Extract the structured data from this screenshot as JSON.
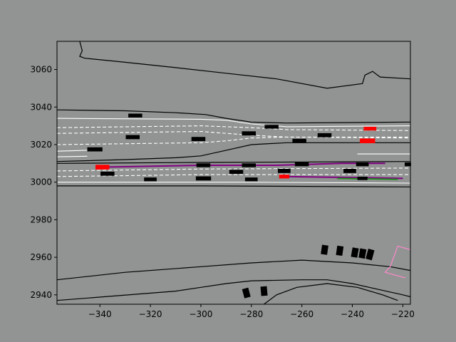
{
  "chart_data": {
    "type": "scatter",
    "title": "",
    "xlabel": "",
    "ylabel": "",
    "xlim": [
      -357,
      -217
    ],
    "ylim": [
      2935,
      3075
    ],
    "grid": false,
    "xticks": [
      -340,
      -320,
      -300,
      -280,
      -260,
      -240,
      -220
    ],
    "yticks": [
      2940,
      2960,
      2980,
      3000,
      3020,
      3040,
      3060
    ],
    "colors": {
      "figure_bg": "#919492",
      "road_edge": "#000000",
      "lane_solid": "#ffffff",
      "lane_dashed": "#ffffff",
      "vehicle": "#000000",
      "highlight_vehicle": "#ff0000",
      "route": "#800080",
      "route_secondary": "#228b22",
      "crosswalk": "#ff88cc"
    },
    "road_edges": [
      [
        [
          -357,
          3038.5
        ],
        [
          -330,
          3038
        ],
        [
          -310,
          3037
        ],
        [
          -298,
          3036
        ],
        [
          -290,
          3034
        ],
        [
          -280,
          3032
        ],
        [
          -266,
          3031.5
        ],
        [
          -217,
          3032
        ]
      ],
      [
        [
          -357,
          3011
        ],
        [
          -330,
          3012
        ],
        [
          -310,
          3013
        ],
        [
          -300,
          3014
        ],
        [
          -290,
          3017
        ],
        [
          -280,
          3020
        ],
        [
          -266,
          3021
        ],
        [
          -217,
          3021
        ]
      ],
      [
        [
          -357,
          3010
        ],
        [
          -300,
          3010.5
        ],
        [
          -217,
          3011
        ]
      ],
      [
        [
          -357,
          2998
        ],
        [
          -300,
          2998
        ],
        [
          -217,
          2997.5
        ]
      ],
      [
        [
          -357,
          2948
        ],
        [
          -330,
          2952
        ],
        [
          -300,
          2955
        ],
        [
          -280,
          2957
        ],
        [
          -260,
          2958.5
        ],
        [
          -240,
          2957
        ],
        [
          -225,
          2955
        ],
        [
          -217,
          2953
        ]
      ],
      [
        [
          -357,
          2937
        ],
        [
          -310,
          2942
        ],
        [
          -300,
          2944
        ],
        [
          -290,
          2946
        ],
        [
          -280,
          2947.5
        ],
        [
          -260,
          2948
        ],
        [
          -250,
          2948
        ],
        [
          -240,
          2946
        ],
        [
          -230,
          2943
        ],
        [
          -220,
          2940
        ],
        [
          -217,
          2939
        ]
      ],
      [
        [
          -275,
          2935
        ],
        [
          -270,
          2940
        ],
        [
          -262,
          2944
        ],
        [
          -250,
          2946
        ],
        [
          -238,
          2944
        ],
        [
          -228,
          2940
        ],
        [
          -222,
          2937
        ]
      ],
      [
        [
          -348,
          3075
        ],
        [
          -347,
          3070
        ],
        [
          -348,
          3067
        ],
        [
          -346,
          3066
        ],
        [
          -331,
          3064
        ],
        [
          -310,
          3061
        ],
        [
          -290,
          3058
        ],
        [
          -270,
          3055
        ],
        [
          -250,
          3050
        ],
        [
          -236,
          3052.5
        ],
        [
          -235,
          3057
        ],
        [
          -232,
          3059
        ],
        [
          -229,
          3056
        ],
        [
          -217,
          3055
        ]
      ]
    ],
    "lane_solid": [
      [
        [
          -357,
          3034
        ],
        [
          -300,
          3033.5
        ],
        [
          -290,
          3033
        ],
        [
          -280,
          3031
        ],
        [
          -266,
          3029.5
        ],
        [
          -217,
          3030
        ]
      ],
      [
        [
          -357,
          3016.5
        ],
        [
          -345,
          3017
        ]
      ],
      [
        [
          -357,
          3013.5
        ],
        [
          -345,
          3013.8
        ]
      ],
      [
        [
          -238,
          3015
        ],
        [
          -217,
          3015
        ]
      ],
      [
        [
          -357,
          3000
        ],
        [
          -280,
          3000
        ],
        [
          -217,
          2999.5
        ]
      ]
    ],
    "lane_dashed": [
      [
        [
          -357,
          3029
        ],
        [
          -300,
          3030
        ],
        [
          -280,
          3029
        ],
        [
          -266,
          3028
        ],
        [
          -217,
          3027.5
        ]
      ],
      [
        [
          -357,
          3026
        ],
        [
          -300,
          3027
        ],
        [
          -280,
          3025
        ],
        [
          -266,
          3024
        ],
        [
          -217,
          3024
        ]
      ],
      [
        [
          -357,
          3020
        ],
        [
          -300,
          3021
        ],
        [
          -290,
          3022
        ],
        [
          -280,
          3023.5
        ],
        [
          -266,
          3024
        ],
        [
          -217,
          3023.5
        ]
      ],
      [
        [
          -357,
          3006
        ],
        [
          -300,
          3007
        ],
        [
          -217,
          3007.5
        ]
      ],
      [
        [
          -357,
          3003
        ],
        [
          -300,
          3004
        ],
        [
          -217,
          3004
        ]
      ]
    ],
    "routes": [
      {
        "color_key": "route",
        "points": [
          [
            -340,
            3008
          ],
          [
            -300,
            3009
          ],
          [
            -270,
            3009
          ],
          [
            -244,
            3010
          ],
          [
            -227,
            3010
          ]
        ]
      },
      {
        "color_key": "route",
        "points": [
          [
            -268,
            3003
          ],
          [
            -240,
            3002.5
          ],
          [
            -220,
            3002
          ]
        ]
      },
      {
        "color_key": "route_secondary",
        "points": [
          [
            -246,
            3002
          ],
          [
            -222,
            3001.5
          ]
        ]
      }
    ],
    "crosswalk": [
      [
        -217,
        2964
      ],
      [
        -222,
        2966
      ],
      [
        -225,
        2955
      ],
      [
        -227,
        2952
      ],
      [
        -219,
        2949
      ]
    ],
    "vehicles": [
      {
        "x": -326,
        "y": 3035.5,
        "w": 5.5,
        "h": 2,
        "angle": 0,
        "color_key": "vehicle"
      },
      {
        "x": -327,
        "y": 3024,
        "w": 5.5,
        "h": 2.2,
        "angle": 0,
        "color_key": "vehicle"
      },
      {
        "x": -301,
        "y": 3023,
        "w": 5.5,
        "h": 2.2,
        "angle": 0,
        "color_key": "vehicle"
      },
      {
        "x": -281,
        "y": 3026,
        "w": 5.5,
        "h": 2.2,
        "angle": 0,
        "color_key": "vehicle"
      },
      {
        "x": -272,
        "y": 3029.5,
        "w": 5.5,
        "h": 2,
        "angle": 0,
        "color_key": "vehicle"
      },
      {
        "x": -261,
        "y": 3022,
        "w": 5.5,
        "h": 2.2,
        "angle": 0,
        "color_key": "vehicle"
      },
      {
        "x": -251,
        "y": 3025,
        "w": 5.5,
        "h": 2.2,
        "angle": 0,
        "color_key": "vehicle"
      },
      {
        "x": -342,
        "y": 3017.5,
        "w": 6,
        "h": 2.2,
        "angle": 0,
        "color_key": "vehicle"
      },
      {
        "x": -233,
        "y": 3028.5,
        "w": 5,
        "h": 2,
        "angle": 0,
        "color_key": "highlight_vehicle"
      },
      {
        "x": -234,
        "y": 3022,
        "w": 6,
        "h": 2.5,
        "angle": 0,
        "color_key": "highlight_vehicle"
      },
      {
        "x": -339,
        "y": 3008,
        "w": 5.5,
        "h": 2.5,
        "angle": 0,
        "color_key": "highlight_vehicle"
      },
      {
        "x": -337,
        "y": 3004.5,
        "w": 5.5,
        "h": 2.2,
        "angle": 0,
        "color_key": "vehicle"
      },
      {
        "x": -320,
        "y": 3001.5,
        "w": 5,
        "h": 2,
        "angle": 0,
        "color_key": "vehicle"
      },
      {
        "x": -299,
        "y": 3009,
        "w": 5.5,
        "h": 2,
        "angle": 0,
        "color_key": "vehicle"
      },
      {
        "x": -299,
        "y": 3002,
        "w": 6,
        "h": 2.2,
        "angle": 0,
        "color_key": "vehicle"
      },
      {
        "x": -286,
        "y": 3005.5,
        "w": 5.5,
        "h": 2.2,
        "angle": 0,
        "color_key": "vehicle"
      },
      {
        "x": -281,
        "y": 3009,
        "w": 5.5,
        "h": 2,
        "angle": 0,
        "color_key": "vehicle"
      },
      {
        "x": -280,
        "y": 3001.5,
        "w": 5,
        "h": 2,
        "angle": 0,
        "color_key": "vehicle"
      },
      {
        "x": -267,
        "y": 3006,
        "w": 5,
        "h": 2.2,
        "angle": 0,
        "color_key": "vehicle"
      },
      {
        "x": -267,
        "y": 3003,
        "w": 4,
        "h": 2,
        "angle": 0,
        "color_key": "highlight_vehicle"
      },
      {
        "x": -260,
        "y": 3009.5,
        "w": 5.5,
        "h": 2,
        "angle": 0,
        "color_key": "vehicle"
      },
      {
        "x": -241,
        "y": 3006,
        "w": 5,
        "h": 2.2,
        "angle": 0,
        "color_key": "vehicle"
      },
      {
        "x": -236,
        "y": 3009.5,
        "w": 5,
        "h": 2,
        "angle": 0,
        "color_key": "vehicle"
      },
      {
        "x": -236,
        "y": 3002,
        "w": 4,
        "h": 1.8,
        "angle": 0,
        "color_key": "vehicle"
      },
      {
        "x": -218,
        "y": 3009.5,
        "w": 2.5,
        "h": 2,
        "angle": 0,
        "color_key": "vehicle"
      },
      {
        "x": -251,
        "y": 2964,
        "w": 2.5,
        "h": 5,
        "angle": -8,
        "color_key": "vehicle"
      },
      {
        "x": -245,
        "y": 2963.5,
        "w": 2.5,
        "h": 5,
        "angle": -8,
        "color_key": "vehicle"
      },
      {
        "x": -239,
        "y": 2962.5,
        "w": 2.5,
        "h": 5,
        "angle": -10,
        "color_key": "vehicle"
      },
      {
        "x": -236,
        "y": 2962,
        "w": 2.5,
        "h": 5,
        "angle": -10,
        "color_key": "vehicle"
      },
      {
        "x": -233,
        "y": 2961.5,
        "w": 2.5,
        "h": 5.5,
        "angle": -15,
        "color_key": "vehicle"
      },
      {
        "x": -282,
        "y": 2941,
        "w": 2.5,
        "h": 5,
        "angle": 15,
        "color_key": "vehicle"
      },
      {
        "x": -275,
        "y": 2942,
        "w": 2.5,
        "h": 5,
        "angle": 5,
        "color_key": "vehicle"
      }
    ]
  }
}
